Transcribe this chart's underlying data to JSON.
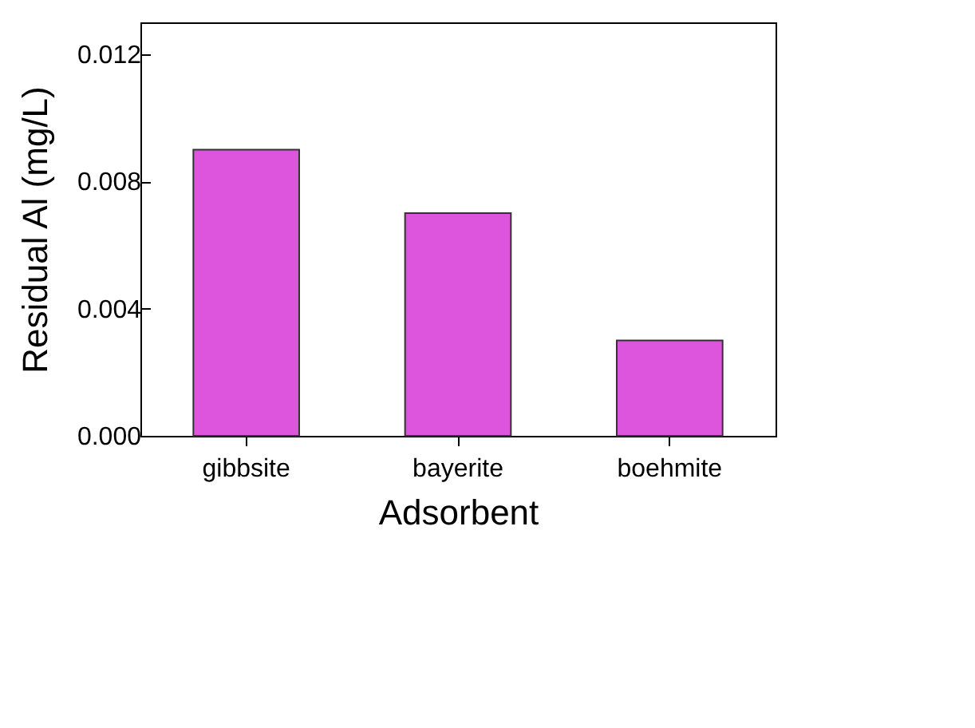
{
  "chart_data": {
    "type": "bar",
    "xlabel": "Adsorbent",
    "ylabel": "Residual Al (mg/L)",
    "categories": [
      "gibbsite",
      "bayerite",
      "boehmite"
    ],
    "values": [
      0.009,
      0.007,
      0.003
    ],
    "color": "#dd55dd",
    "ylim": [
      0,
      0.013
    ],
    "yticks": [
      {
        "value": 0,
        "label": "0.000"
      },
      {
        "value": 0.004,
        "label": "0.004"
      },
      {
        "value": 0.008,
        "label": "0.008"
      },
      {
        "value": 0.012,
        "label": "0.012"
      }
    ],
    "grid": false
  }
}
